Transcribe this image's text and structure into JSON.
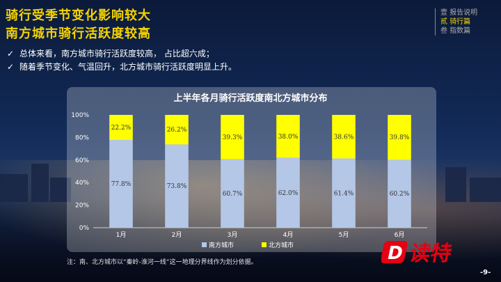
{
  "heading": {
    "line1": "骑行受季节变化影响较大",
    "line2": "南方城市骑行活跃度较高"
  },
  "toc": [
    {
      "label": "壹 报告说明",
      "active": false
    },
    {
      "label": "贰 骑行篇",
      "active": true
    },
    {
      "label": "叁 指数篇",
      "active": false
    }
  ],
  "bullets": [
    {
      "mark": "✓",
      "text": "总体来看，南方城市骑行活跃度较高， 占比超六成；"
    },
    {
      "mark": "✓",
      "text": "随着季节变化、气温回升，北方城市骑行活跃度明显上升。"
    }
  ],
  "note": "注：南、北方城市以“秦岭-淮河一线”这一地理分界线作为划分依据。",
  "page_number": "-9-",
  "logo": {
    "text": "读特",
    "mark": "D"
  },
  "colors": {
    "title": "#f5d300",
    "south": "#b4c7e7",
    "north": "#ffff00"
  },
  "chart_data": {
    "type": "bar",
    "stacked": true,
    "title": "上半年各月骑行活跃度南北方城市分布",
    "categories": [
      "1月",
      "2月",
      "3月",
      "4月",
      "5月",
      "6月"
    ],
    "series": [
      {
        "name": "南方城市",
        "values": [
          77.8,
          73.8,
          60.7,
          62.0,
          61.4,
          60.2
        ],
        "labels": [
          "77.8%",
          "73.8%",
          "60.7%",
          "62.0%",
          "61.4%",
          "60.2%"
        ],
        "color": "#b4c7e7"
      },
      {
        "name": "北方城市",
        "values": [
          22.2,
          26.2,
          39.3,
          38.0,
          38.6,
          39.8
        ],
        "labels": [
          "22.2%",
          "26.2%",
          "39.3%",
          "38.0%",
          "38.6%",
          "39.8%"
        ],
        "color": "#ffff00"
      }
    ],
    "ylim": [
      0,
      100
    ],
    "yticks": [
      "0%",
      "20%",
      "40%",
      "60%",
      "80%",
      "100%"
    ],
    "legend": "bottom",
    "grid": false
  }
}
